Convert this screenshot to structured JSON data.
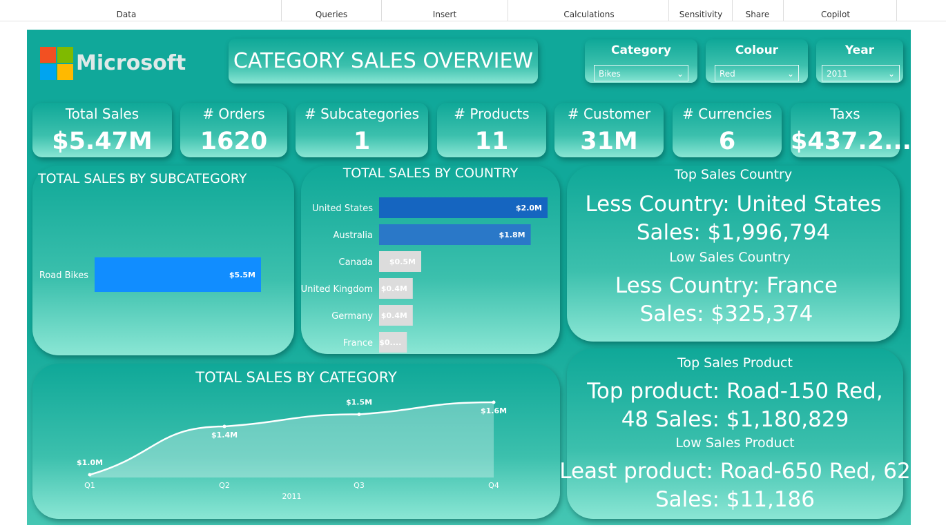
{
  "ribbon": {
    "groups": [
      "Data",
      "Queries",
      "Insert",
      "Calculations",
      "Sensitivity",
      "Share",
      "Copilot"
    ]
  },
  "header": {
    "logo": "Microsoft",
    "title": "CATEGORY SALES OVERVIEW"
  },
  "slicers": [
    {
      "label": "Category",
      "value": "Bikes"
    },
    {
      "label": "Colour",
      "value": "Red"
    },
    {
      "label": "Year",
      "value": "2011"
    }
  ],
  "kpis": [
    {
      "label": "Total Sales",
      "value": "$5.47M"
    },
    {
      "label": "# Orders",
      "value": "1620"
    },
    {
      "label": "# Subcategories",
      "value": "1"
    },
    {
      "label": "# Products",
      "value": "11"
    },
    {
      "label": "# Customer",
      "value": "31M"
    },
    {
      "label": "# Currencies",
      "value": "6"
    },
    {
      "label": "Taxs",
      "value": "$437.2..."
    }
  ],
  "subcategory_chart": {
    "type": "bar",
    "title": "TOTAL SALES BY SUBCATEGORY",
    "categories": [
      "Road Bikes"
    ],
    "values": [
      5.5
    ],
    "value_labels": [
      "$5.5M"
    ],
    "color": "#118dff"
  },
  "country_chart": {
    "type": "bar",
    "title": "TOTAL SALES BY COUNTRY",
    "categories": [
      "United States",
      "Australia",
      "Canada",
      "United Kingdom",
      "Germany",
      "France"
    ],
    "values": [
      2.0,
      1.8,
      0.5,
      0.4,
      0.4,
      0.33
    ],
    "value_labels": [
      "$2.0M",
      "$1.8M",
      "$0.5M",
      "$0.4M",
      "$0.4M",
      "$0...."
    ],
    "colors": [
      "#1565c0",
      "#2a78c8",
      "#dcdcdc",
      "#dcdcdc",
      "#dcdcdc",
      "#dcdcdc"
    ]
  },
  "category_chart": {
    "type": "area",
    "title": "TOTAL SALES BY CATEGORY",
    "categories": [
      "Q1",
      "Q2",
      "Q3",
      "Q4"
    ],
    "values": [
      1.0,
      1.4,
      1.5,
      1.6
    ],
    "value_labels": [
      "$1.0M",
      "$1.4M",
      "$1.5M",
      "$1.6M"
    ],
    "x_label": "2011",
    "color": "#ffffff"
  },
  "country_panel": {
    "title": "Top Sales Country",
    "top_text": "Less Country: United States  Sales: $1,996,794",
    "low_title": "Low Sales Country",
    "low_text": "Less Country: France Sales: $325,374"
  },
  "product_panel": {
    "title": "Top Sales Product",
    "top_text": "Top product: Road-150 Red, 48 Sales: $1,180,829",
    "low_title": "Low Sales Product",
    "low_text": "Least product: Road-650 Red, 62 Sales: $11,186"
  }
}
